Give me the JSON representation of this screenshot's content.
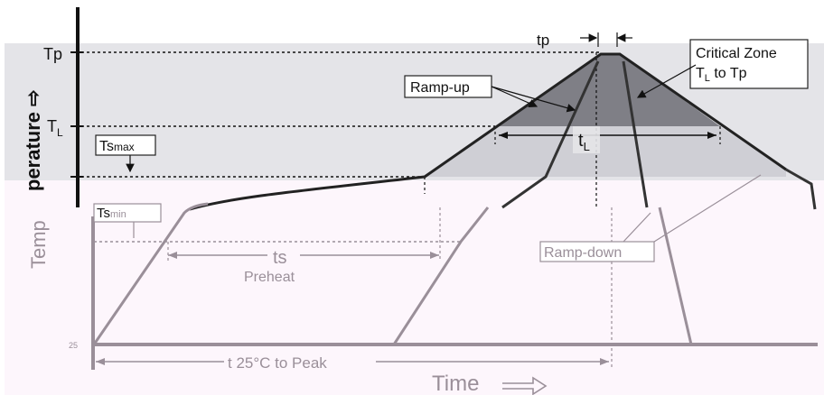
{
  "labels": {
    "tp_axis": "Tp",
    "tl_axis": "T",
    "tl_axis_sub": "L",
    "ts_max": "Ts",
    "ts_max_sub": "max",
    "ts_min": "Ts",
    "ts_min_sub": "min",
    "origin": "25",
    "y_axis": "Temperature ⇨",
    "y_axis_top": "perature ⇨",
    "y_axis_bottom": "Temp",
    "x_axis": "Time",
    "tp_dim": "tp",
    "tl_dim": "t",
    "tl_dim_sub": "L",
    "ts_dim": "ts",
    "preheat": "Preheat",
    "t25_to_peak": "t 25°C to Peak",
    "ramp_up": "Ramp-up",
    "ramp_down": "Ramp-down",
    "critical_zone_line1": "Critical Zone",
    "critical_zone_line2_a": "T",
    "critical_zone_line2_sub": "L",
    "critical_zone_line2_b": " to Tp"
  },
  "colors": {
    "band": "#e4e4e8",
    "critical_fill": "#7f7f86",
    "light_fill": "#cfcfd5",
    "curve_top": "#222222",
    "curve_bottom": "#9a8f99",
    "axis": "#111111",
    "bottom_bg": "#fdf6fc"
  }
}
